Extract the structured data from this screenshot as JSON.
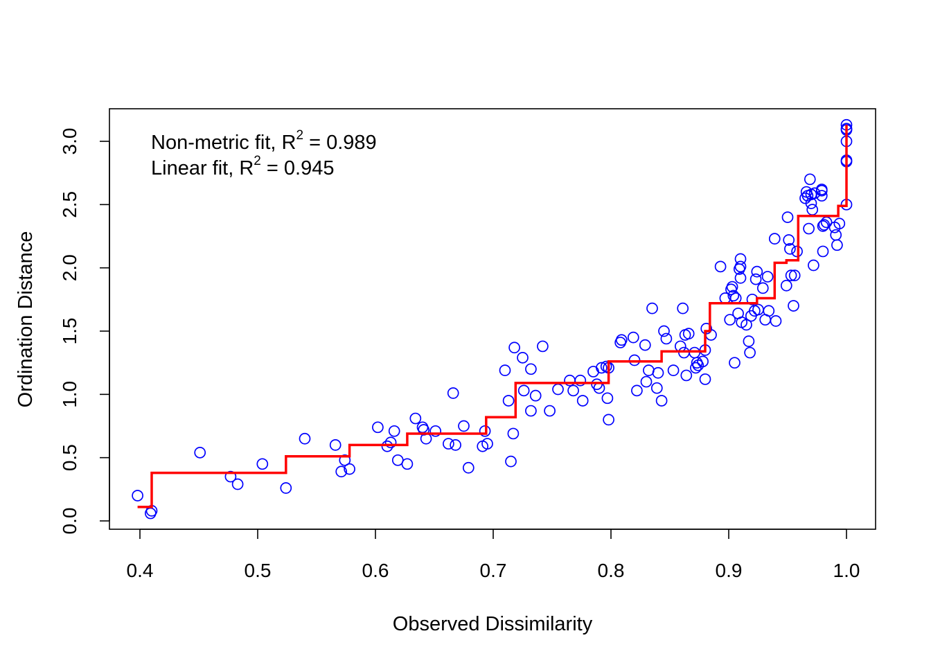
{
  "chart_data": {
    "type": "scatter",
    "title": "",
    "xlabel": "Observed Dissimilarity",
    "ylabel": "Ordination Distance",
    "xlim": [
      0.4,
      1.0
    ],
    "ylim": [
      0.0,
      3.0
    ],
    "x_ticks": [
      "0.4",
      "0.5",
      "0.6",
      "0.7",
      "0.8",
      "0.9",
      "1.0"
    ],
    "y_ticks": [
      "0.0",
      "0.5",
      "1.0",
      "1.5",
      "2.0",
      "2.5",
      "3.0"
    ],
    "grid": false,
    "legend_placement": "top-left",
    "annotations": [
      {
        "prefix": "Non-metric fit, R",
        "sup": "2",
        "suffix": " = 0.989"
      },
      {
        "prefix": "Linear fit, R",
        "sup": "2",
        "suffix": " = 0.945"
      }
    ],
    "colors": {
      "points": "#0000ff",
      "fit_line": "#ff0000",
      "axes": "#000000"
    },
    "points": [
      [
        0.398,
        0.2
      ],
      [
        0.409,
        0.06
      ],
      [
        0.41,
        0.08
      ],
      [
        0.451,
        0.54
      ],
      [
        0.477,
        0.35
      ],
      [
        0.483,
        0.29
      ],
      [
        0.504,
        0.45
      ],
      [
        0.524,
        0.26
      ],
      [
        0.54,
        0.65
      ],
      [
        0.566,
        0.6
      ],
      [
        0.571,
        0.39
      ],
      [
        0.574,
        0.48
      ],
      [
        0.578,
        0.41
      ],
      [
        0.602,
        0.74
      ],
      [
        0.61,
        0.59
      ],
      [
        0.613,
        0.62
      ],
      [
        0.616,
        0.71
      ],
      [
        0.619,
        0.48
      ],
      [
        0.627,
        0.45
      ],
      [
        0.634,
        0.81
      ],
      [
        0.64,
        0.74
      ],
      [
        0.641,
        0.72
      ],
      [
        0.643,
        0.65
      ],
      [
        0.651,
        0.71
      ],
      [
        0.662,
        0.61
      ],
      [
        0.666,
        1.01
      ],
      [
        0.668,
        0.6
      ],
      [
        0.675,
        0.75
      ],
      [
        0.679,
        0.42
      ],
      [
        0.691,
        0.59
      ],
      [
        0.693,
        0.71
      ],
      [
        0.695,
        0.61
      ],
      [
        0.71,
        1.19
      ],
      [
        0.713,
        0.95
      ],
      [
        0.715,
        0.47
      ],
      [
        0.717,
        0.69
      ],
      [
        0.718,
        1.37
      ],
      [
        0.725,
        1.29
      ],
      [
        0.726,
        1.03
      ],
      [
        0.732,
        1.2
      ],
      [
        0.732,
        0.87
      ],
      [
        0.736,
        0.99
      ],
      [
        0.742,
        1.38
      ],
      [
        0.748,
        0.87
      ],
      [
        0.755,
        1.04
      ],
      [
        0.765,
        1.11
      ],
      [
        0.768,
        1.03
      ],
      [
        0.774,
        1.11
      ],
      [
        0.776,
        0.95
      ],
      [
        0.785,
        1.18
      ],
      [
        0.788,
        1.08
      ],
      [
        0.79,
        1.05
      ],
      [
        0.792,
        1.21
      ],
      [
        0.796,
        1.22
      ],
      [
        0.797,
        0.97
      ],
      [
        0.798,
        0.8
      ],
      [
        0.798,
        1.21
      ],
      [
        0.808,
        1.41
      ],
      [
        0.809,
        1.43
      ],
      [
        0.819,
        1.45
      ],
      [
        0.82,
        1.27
      ],
      [
        0.822,
        1.03
      ],
      [
        0.829,
        1.39
      ],
      [
        0.83,
        1.1
      ],
      [
        0.832,
        1.19
      ],
      [
        0.835,
        1.68
      ],
      [
        0.839,
        1.05
      ],
      [
        0.84,
        1.17
      ],
      [
        0.843,
        0.95
      ],
      [
        0.845,
        1.5
      ],
      [
        0.847,
        1.44
      ],
      [
        0.853,
        1.19
      ],
      [
        0.859,
        1.38
      ],
      [
        0.861,
        1.68
      ],
      [
        0.862,
        1.33
      ],
      [
        0.863,
        1.47
      ],
      [
        0.864,
        1.15
      ],
      [
        0.866,
        1.48
      ],
      [
        0.871,
        1.33
      ],
      [
        0.872,
        1.21
      ],
      [
        0.873,
        1.25
      ],
      [
        0.874,
        1.23
      ],
      [
        0.878,
        1.26
      ],
      [
        0.88,
        1.35
      ],
      [
        0.88,
        1.12
      ],
      [
        0.881,
        1.52
      ],
      [
        0.885,
        1.47
      ],
      [
        0.893,
        2.01
      ],
      [
        0.897,
        1.76
      ],
      [
        0.901,
        1.59
      ],
      [
        0.902,
        1.83
      ],
      [
        0.903,
        1.85
      ],
      [
        0.904,
        1.78
      ],
      [
        0.905,
        1.25
      ],
      [
        0.906,
        1.76
      ],
      [
        0.908,
        1.64
      ],
      [
        0.909,
        1.99
      ],
      [
        0.91,
        2.07
      ],
      [
        0.91,
        1.92
      ],
      [
        0.91,
        2.01
      ],
      [
        0.911,
        1.57
      ],
      [
        0.915,
        1.55
      ],
      [
        0.917,
        1.42
      ],
      [
        0.918,
        1.33
      ],
      [
        0.919,
        1.62
      ],
      [
        0.92,
        1.75
      ],
      [
        0.922,
        1.66
      ],
      [
        0.923,
        1.91
      ],
      [
        0.924,
        1.97
      ],
      [
        0.925,
        1.67
      ],
      [
        0.929,
        1.84
      ],
      [
        0.931,
        1.59
      ],
      [
        0.933,
        1.93
      ],
      [
        0.934,
        1.66
      ],
      [
        0.939,
        2.23
      ],
      [
        0.94,
        1.58
      ],
      [
        0.949,
        1.86
      ],
      [
        0.95,
        2.4
      ],
      [
        0.951,
        2.22
      ],
      [
        0.952,
        2.15
      ],
      [
        0.953,
        1.94
      ],
      [
        0.955,
        1.7
      ],
      [
        0.956,
        1.94
      ],
      [
        0.958,
        2.13
      ],
      [
        0.965,
        2.55
      ],
      [
        0.966,
        2.6
      ],
      [
        0.967,
        2.57
      ],
      [
        0.968,
        2.31
      ],
      [
        0.969,
        2.7
      ],
      [
        0.97,
        2.51
      ],
      [
        0.97,
        2.58
      ],
      [
        0.971,
        2.46
      ],
      [
        0.972,
        2.02
      ],
      [
        0.973,
        2.59
      ],
      [
        0.979,
        2.61
      ],
      [
        0.979,
        2.62
      ],
      [
        0.979,
        2.57
      ],
      [
        0.98,
        2.33
      ],
      [
        0.98,
        2.13
      ],
      [
        0.981,
        2.34
      ],
      [
        0.983,
        2.36
      ],
      [
        0.99,
        2.32
      ],
      [
        0.991,
        2.26
      ],
      [
        0.992,
        2.18
      ],
      [
        0.994,
        2.35
      ],
      [
        1.0,
        3.13
      ],
      [
        1.0,
        3.09
      ],
      [
        1.0,
        3.1
      ],
      [
        1.0,
        3.0
      ],
      [
        1.0,
        2.84
      ],
      [
        1.0,
        2.85
      ],
      [
        1.0,
        2.5
      ]
    ],
    "fit_step": [
      [
        0.398,
        0.11
      ],
      [
        0.41,
        0.11
      ],
      [
        0.41,
        0.38
      ],
      [
        0.524,
        0.38
      ],
      [
        0.524,
        0.51
      ],
      [
        0.578,
        0.51
      ],
      [
        0.578,
        0.6
      ],
      [
        0.627,
        0.6
      ],
      [
        0.627,
        0.69
      ],
      [
        0.694,
        0.69
      ],
      [
        0.694,
        0.82
      ],
      [
        0.719,
        0.82
      ],
      [
        0.719,
        1.09
      ],
      [
        0.798,
        1.09
      ],
      [
        0.798,
        1.26
      ],
      [
        0.843,
        1.26
      ],
      [
        0.843,
        1.34
      ],
      [
        0.88,
        1.34
      ],
      [
        0.88,
        1.5
      ],
      [
        0.884,
        1.5
      ],
      [
        0.884,
        1.72
      ],
      [
        0.924,
        1.72
      ],
      [
        0.924,
        1.76
      ],
      [
        0.939,
        1.76
      ],
      [
        0.939,
        2.04
      ],
      [
        0.949,
        2.04
      ],
      [
        0.949,
        2.06
      ],
      [
        0.959,
        2.06
      ],
      [
        0.959,
        2.41
      ],
      [
        0.993,
        2.41
      ],
      [
        0.993,
        2.49
      ],
      [
        1.0,
        2.49
      ],
      [
        1.0,
        3.13
      ]
    ]
  }
}
